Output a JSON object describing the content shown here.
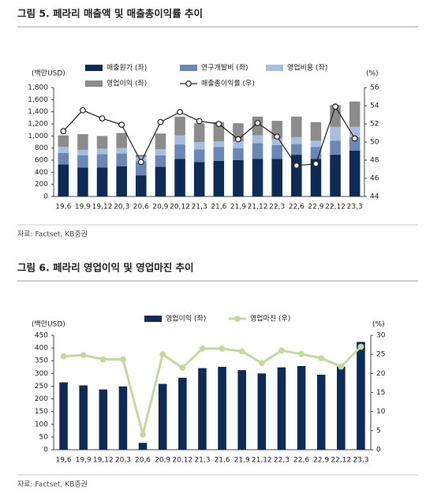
{
  "chart_data": [
    {
      "type": "bar",
      "stacked": true,
      "title": "그림 5. 페라리 매출액 및 매출총이익률 추이",
      "source": "자료: Factset, KB증권",
      "y_label": "(백만USD)",
      "y2_label": "(%)",
      "categories": [
        "19,6",
        "19,9",
        "19,12",
        "20,3",
        "20,6",
        "20,9",
        "20,12",
        "21,3",
        "21,6",
        "21,9",
        "21,12",
        "22,3",
        "22,6",
        "22,9",
        "22,12",
        "23,3"
      ],
      "series": [
        {
          "name": "매출원가 (좌)",
          "color": "#0d2b55",
          "values": [
            530,
            480,
            480,
            500,
            350,
            490,
            620,
            570,
            590,
            600,
            620,
            620,
            690,
            620,
            690,
            760
          ]
        },
        {
          "name": "연구개발비 (좌)",
          "color": "#6b87b5",
          "values": [
            190,
            200,
            220,
            210,
            230,
            190,
            240,
            210,
            230,
            200,
            260,
            230,
            180,
            200,
            230,
            220
          ]
        },
        {
          "name": "영업비용 (좌)",
          "color": "#a9bde0",
          "values": [
            100,
            90,
            90,
            90,
            70,
            100,
            150,
            120,
            90,
            110,
            130,
            100,
            110,
            100,
            230,
            170
          ]
        },
        {
          "name": "영업이익 (좌)",
          "color": "#8c8c8c",
          "values": [
            190,
            260,
            210,
            250,
            40,
            260,
            310,
            310,
            320,
            300,
            310,
            300,
            340,
            310,
            360,
            420
          ]
        },
        {
          "name": "매출총이익률 (우)",
          "color": "#222222",
          "axis": "y2",
          "values": [
            51.2,
            53.5,
            52.6,
            51.9,
            47.8,
            52.2,
            53.3,
            52.3,
            52.0,
            50.3,
            52.1,
            50.6,
            47.4,
            47.6,
            53.9,
            50.4
          ]
        }
      ],
      "ylim": [
        0,
        1800
      ],
      "yticks": [
        0,
        200,
        400,
        600,
        800,
        {
          "value": 1000,
          "label": "1,000"
        },
        {
          "value": 1200,
          "label": "1,200"
        },
        {
          "value": 1400,
          "label": "1,400"
        },
        {
          "value": 1600,
          "label": "1,600"
        },
        {
          "value": 1800,
          "label": "1,800"
        }
      ],
      "y2lim": [
        44,
        56
      ],
      "y2ticks": [
        44,
        46,
        48,
        50,
        52,
        54,
        56
      ]
    },
    {
      "type": "bar",
      "stacked": false,
      "title": "그림 6. 페라리 영업이익 및 영업마진 추이",
      "source": "자료: Factset, KB증권",
      "y_label": "(백만USD)",
      "y2_label": "(%)",
      "categories": [
        "19,6",
        "19,9",
        "19,12",
        "20,3",
        "20,6",
        "20,9",
        "20,12",
        "21,3",
        "21,6",
        "21,9",
        "21,12",
        "22,3",
        "22,6",
        "22,9",
        "22,12",
        "23,3"
      ],
      "series": [
        {
          "name": "영업이익 (좌)",
          "color": "#0d2b55",
          "values": [
            265,
            253,
            237,
            249,
            27,
            259,
            283,
            321,
            326,
            313,
            300,
            324,
            329,
            295,
            327,
            424
          ]
        },
        {
          "name": "영업마진 (우)",
          "color": "#c4d8a0",
          "axis": "y2",
          "values": [
            24.5,
            24.8,
            23.7,
            23.7,
            4,
            25,
            21.5,
            26.5,
            26.5,
            25.8,
            22.7,
            26,
            25.1,
            24,
            21.8,
            27
          ]
        }
      ],
      "ylim": [
        0,
        450
      ],
      "yticks": [
        0,
        50,
        100,
        150,
        200,
        250,
        300,
        350,
        400,
        450
      ],
      "y2lim": [
        0,
        30
      ],
      "y2ticks": [
        0,
        5,
        10,
        15,
        20,
        25,
        30
      ]
    }
  ]
}
